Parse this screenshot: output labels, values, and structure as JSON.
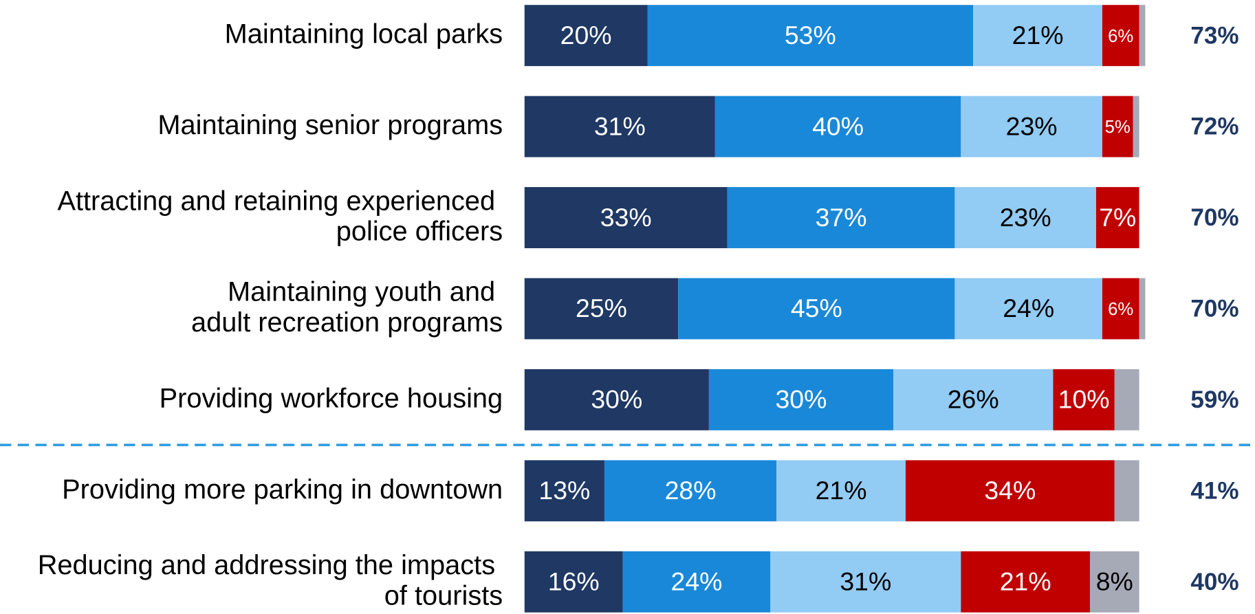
{
  "chart_data": {
    "type": "stacked-bar-horizontal",
    "categories": [
      "Maintaining local parks",
      "Maintaining senior programs",
      "Attracting and retaining experienced\npolice officers",
      "Maintaining youth and\nadult recreation programs",
      "Providing workforce housing",
      "Providing more parking in downtown",
      "Reducing and addressing the impacts\nof tourists"
    ],
    "xlim": [
      0,
      100
    ],
    "series": [
      {
        "color": "#1f3864",
        "values": [
          20,
          31,
          33,
          25,
          30,
          13,
          16
        ],
        "value_labels": [
          "20%",
          "31%",
          "33%",
          "25%",
          "30%",
          "13%",
          "16%"
        ]
      },
      {
        "color": "#1a88d8",
        "values": [
          53,
          40,
          37,
          45,
          30,
          28,
          24
        ],
        "value_labels": [
          "53%",
          "40%",
          "37%",
          "45%",
          "30%",
          "28%",
          "24%"
        ]
      },
      {
        "color": "#92cbf3",
        "values": [
          21,
          23,
          23,
          24,
          26,
          21,
          31
        ],
        "value_labels": [
          "21%",
          "23%",
          "23%",
          "24%",
          "26%",
          "21%",
          "31%"
        ]
      },
      {
        "color": "#c00000",
        "values": [
          6,
          5,
          7,
          6,
          10,
          34,
          21
        ],
        "value_labels": [
          "6%",
          "5%",
          "7%",
          "6%",
          "10%",
          "34%",
          "21%"
        ]
      },
      {
        "color": "#a6a9b6",
        "values": [
          1,
          1,
          0,
          1,
          4,
          4,
          8
        ],
        "value_labels": [
          null,
          null,
          null,
          null,
          null,
          null,
          "8%"
        ]
      }
    ],
    "totals": {
      "color": "#1f3864",
      "values": [
        73,
        72,
        70,
        70,
        59,
        41,
        40
      ],
      "value_labels": [
        "73%",
        "72%",
        "70%",
        "70%",
        "59%",
        "41%",
        "40%"
      ]
    }
  }
}
